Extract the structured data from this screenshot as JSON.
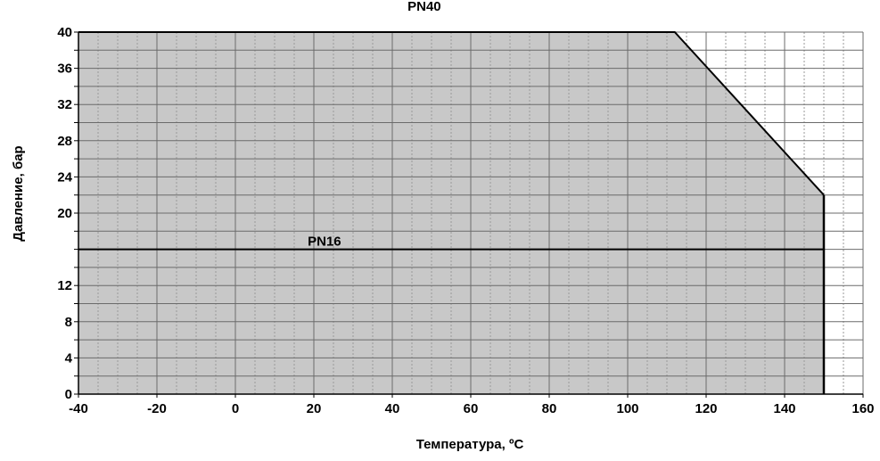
{
  "chart_data": {
    "type": "area",
    "xlabel": "Температура, ºC",
    "ylabel": "Давление, бар",
    "xlim": [
      -40,
      160
    ],
    "ylim": [
      0,
      40
    ],
    "x_ticks": [
      -40,
      -20,
      0,
      20,
      40,
      60,
      80,
      100,
      120,
      140,
      160
    ],
    "y_ticks": [
      0,
      4,
      8,
      12,
      20,
      24,
      28,
      32,
      36,
      40
    ],
    "x_minor_step": 5,
    "y_minor_step": 2,
    "grid": true,
    "series": [
      {
        "name": "PN40",
        "x": [
          -40,
          112,
          150
        ],
        "y": [
          40,
          40,
          22
        ]
      },
      {
        "name": "PN16",
        "x": [
          -40,
          150
        ],
        "y": [
          16,
          16
        ]
      }
    ],
    "colors": {
      "fill": "#c8c8c8",
      "line": "#000000",
      "grid_major": "#6b6b6b",
      "grid_minor": "#9a9a9a"
    }
  }
}
